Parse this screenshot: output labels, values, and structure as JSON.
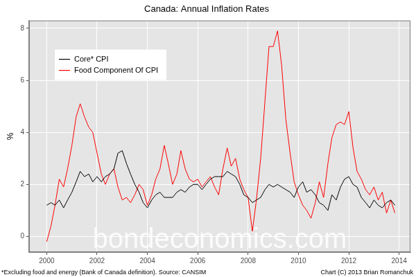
{
  "chart_data": {
    "type": "line",
    "title": "Canada: Annual Inflation Rates",
    "y_label": "%",
    "annotations": [
      "*Excluding food and energy (Bank of Canada definition). Source: CANSIM",
      "Chart (C) 2013 Brian Romanchuk",
      "bondeconomics.com"
    ],
    "x": [
      2000.0,
      2000.17,
      2000.33,
      2000.5,
      2000.67,
      2000.83,
      2001.0,
      2001.17,
      2001.33,
      2001.5,
      2001.67,
      2001.83,
      2002.0,
      2002.17,
      2002.33,
      2002.5,
      2002.67,
      2002.83,
      2003.0,
      2003.17,
      2003.33,
      2003.5,
      2003.67,
      2003.83,
      2004.0,
      2004.17,
      2004.33,
      2004.5,
      2004.67,
      2004.83,
      2005.0,
      2005.17,
      2005.33,
      2005.5,
      2005.67,
      2005.83,
      2006.0,
      2006.17,
      2006.33,
      2006.5,
      2006.67,
      2006.83,
      2007.0,
      2007.17,
      2007.33,
      2007.5,
      2007.67,
      2007.83,
      2008.0,
      2008.17,
      2008.33,
      2008.5,
      2008.67,
      2008.83,
      2009.0,
      2009.17,
      2009.33,
      2009.5,
      2009.67,
      2009.83,
      2010.0,
      2010.17,
      2010.33,
      2010.5,
      2010.67,
      2010.83,
      2011.0,
      2011.17,
      2011.33,
      2011.5,
      2011.67,
      2011.83,
      2012.0,
      2012.17,
      2012.33,
      2012.5,
      2012.67,
      2012.83,
      2013.0,
      2013.17,
      2013.33,
      2013.5,
      2013.67,
      2013.83
    ],
    "series": [
      {
        "name": "Core* CPI",
        "color": "#000000",
        "values": [
          1.2,
          1.3,
          1.2,
          1.4,
          1.1,
          1.4,
          1.7,
          2.1,
          2.5,
          2.3,
          2.4,
          2.1,
          2.3,
          2.1,
          2.3,
          2.4,
          2.6,
          3.2,
          3.3,
          2.8,
          2.4,
          2.0,
          1.7,
          1.3,
          1.1,
          1.4,
          1.6,
          1.7,
          1.5,
          1.5,
          1.5,
          1.7,
          1.8,
          1.7,
          1.9,
          2.0,
          2.0,
          1.8,
          2.0,
          2.2,
          2.3,
          2.3,
          2.3,
          2.5,
          2.4,
          2.3,
          2.0,
          1.6,
          1.5,
          1.3,
          1.4,
          1.5,
          1.8,
          2.0,
          1.9,
          2.0,
          1.9,
          1.8,
          1.7,
          1.5,
          1.9,
          2.1,
          1.7,
          1.8,
          1.6,
          1.3,
          1.2,
          1.0,
          1.6,
          1.4,
          1.9,
          2.2,
          2.3,
          2.0,
          1.9,
          1.5,
          1.3,
          1.1,
          1.4,
          1.2,
          1.1,
          1.3,
          1.4,
          1.2
        ]
      },
      {
        "name": "Food Component Of CPI",
        "color": "#ff0000",
        "values": [
          -0.2,
          0.4,
          1.2,
          2.2,
          1.9,
          2.6,
          3.5,
          4.6,
          5.1,
          4.6,
          4.2,
          4.0,
          3.2,
          2.4,
          2.0,
          2.4,
          2.6,
          1.9,
          1.4,
          1.5,
          1.3,
          1.6,
          2.0,
          1.8,
          1.2,
          1.6,
          2.2,
          2.6,
          3.5,
          2.8,
          2.0,
          2.4,
          3.3,
          2.6,
          2.2,
          2.1,
          2.2,
          1.9,
          2.1,
          2.3,
          1.9,
          1.6,
          2.6,
          3.4,
          2.7,
          3.0,
          2.2,
          1.8,
          1.5,
          0.2,
          1.4,
          3.0,
          5.2,
          7.3,
          7.3,
          7.9,
          6.6,
          4.5,
          3.2,
          2.1,
          1.6,
          1.2,
          1.0,
          0.7,
          1.3,
          2.1,
          1.5,
          2.8,
          3.8,
          4.3,
          4.4,
          4.3,
          4.8,
          3.4,
          2.5,
          2.2,
          1.8,
          1.6,
          1.9,
          1.4,
          1.7,
          0.9,
          1.4,
          0.9
        ]
      }
    ],
    "xlim": [
      1999.3,
      2014.45
    ],
    "xticks": [
      2000,
      2002,
      2004,
      2006,
      2008,
      2010,
      2012,
      2014
    ],
    "ylim": [
      -0.6,
      8.3
    ],
    "yticks": [
      0,
      2,
      4,
      6,
      8
    ],
    "grid": true,
    "legend": "top-left"
  }
}
